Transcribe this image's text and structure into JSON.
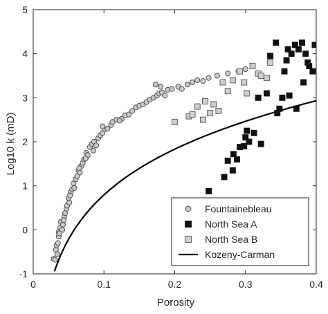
{
  "chart_data": {
    "type": "scatter",
    "xlabel": "Porosity",
    "ylabel": "Log10 k (mD)",
    "xlim": [
      0,
      0.4
    ],
    "ylim": [
      -1,
      5
    ],
    "xticks": [
      0,
      0.1,
      0.2,
      0.3,
      0.4
    ],
    "xtick_labels": [
      "0",
      "0.1",
      "0.2",
      "0.3",
      "0.4"
    ],
    "yticks": [
      -1,
      0,
      1,
      2,
      3,
      4,
      5
    ],
    "ytick_labels": [
      "-1",
      "0",
      "1",
      "2",
      "3",
      "4",
      "5"
    ],
    "grid": false,
    "legend_position": "bottom-right",
    "series": [
      {
        "name": "Fountainebleau",
        "marker": "circle",
        "color": "#c8c8c8",
        "edge": "#444444",
        "points": [
          [
            0.029,
            -0.66
          ],
          [
            0.031,
            -0.68
          ],
          [
            0.032,
            -0.45
          ],
          [
            0.033,
            -0.35
          ],
          [
            0.034,
            -0.55
          ],
          [
            0.035,
            -0.3
          ],
          [
            0.036,
            -0.15
          ],
          [
            0.036,
            -0.05
          ],
          [
            0.038,
            0.05
          ],
          [
            0.039,
            0.18
          ],
          [
            0.041,
            0.0
          ],
          [
            0.042,
            0.12
          ],
          [
            0.044,
            0.3
          ],
          [
            0.045,
            0.38
          ],
          [
            0.047,
            0.48
          ],
          [
            0.048,
            0.55
          ],
          [
            0.05,
            0.72
          ],
          [
            0.051,
            0.62
          ],
          [
            0.053,
            0.85
          ],
          [
            0.055,
            0.92
          ],
          [
            0.057,
            1.05
          ],
          [
            0.058,
            0.95
          ],
          [
            0.06,
            1.15
          ],
          [
            0.062,
            1.22
          ],
          [
            0.064,
            1.35
          ],
          [
            0.066,
            1.3
          ],
          [
            0.068,
            1.45
          ],
          [
            0.07,
            1.52
          ],
          [
            0.072,
            1.6
          ],
          [
            0.075,
            1.75
          ],
          [
            0.077,
            1.7
          ],
          [
            0.08,
            1.88
          ],
          [
            0.083,
            1.95
          ],
          [
            0.086,
            2.0
          ],
          [
            0.089,
            1.92
          ],
          [
            0.092,
            2.08
          ],
          [
            0.095,
            2.15
          ],
          [
            0.098,
            2.2
          ],
          [
            0.101,
            2.28
          ],
          [
            0.105,
            2.3
          ],
          [
            0.11,
            2.38
          ],
          [
            0.112,
            2.45
          ],
          [
            0.118,
            2.5
          ],
          [
            0.125,
            2.52
          ],
          [
            0.13,
            2.6
          ],
          [
            0.135,
            2.62
          ],
          [
            0.14,
            2.7
          ],
          [
            0.145,
            2.78
          ],
          [
            0.15,
            2.82
          ],
          [
            0.155,
            2.85
          ],
          [
            0.16,
            2.9
          ],
          [
            0.165,
            2.96
          ],
          [
            0.17,
            3.0
          ],
          [
            0.175,
            3.05
          ],
          [
            0.178,
            3.1
          ],
          [
            0.182,
            3.12
          ],
          [
            0.186,
            3.05
          ],
          [
            0.19,
            3.18
          ],
          [
            0.196,
            3.2
          ],
          [
            0.205,
            3.25
          ],
          [
            0.21,
            3.2
          ],
          [
            0.218,
            3.3
          ],
          [
            0.225,
            3.35
          ],
          [
            0.232,
            3.4
          ],
          [
            0.24,
            3.38
          ],
          [
            0.248,
            3.45
          ],
          [
            0.26,
            3.5
          ],
          [
            0.275,
            3.55
          ],
          [
            0.29,
            3.6
          ],
          [
            0.3,
            3.65
          ],
          [
            0.173,
            3.3
          ],
          [
            0.18,
            3.25
          ],
          [
            0.122,
            2.48
          ],
          [
            0.098,
            2.35
          ],
          [
            0.085,
            1.8
          ],
          [
            0.074,
            1.62
          ],
          [
            0.065,
            1.4
          ],
          [
            0.052,
            0.78
          ],
          [
            0.043,
            0.22
          ],
          [
            0.037,
            -0.08
          ]
        ]
      },
      {
        "name": "North Sea A",
        "marker": "square",
        "color": "#111111",
        "edge": "#111111",
        "points": [
          [
            0.248,
            0.88
          ],
          [
            0.27,
            1.2
          ],
          [
            0.275,
            1.57
          ],
          [
            0.282,
            1.35
          ],
          [
            0.283,
            1.72
          ],
          [
            0.288,
            1.6
          ],
          [
            0.292,
            1.88
          ],
          [
            0.298,
            1.9
          ],
          [
            0.3,
            2.1
          ],
          [
            0.302,
            2.25
          ],
          [
            0.305,
            2.0
          ],
          [
            0.312,
            2.2
          ],
          [
            0.318,
            3.0
          ],
          [
            0.322,
            1.95
          ],
          [
            0.33,
            3.1
          ],
          [
            0.335,
            3.95
          ],
          [
            0.343,
            4.25
          ],
          [
            0.345,
            2.65
          ],
          [
            0.348,
            2.75
          ],
          [
            0.352,
            3.0
          ],
          [
            0.355,
            3.6
          ],
          [
            0.358,
            3.85
          ],
          [
            0.36,
            4.1
          ],
          [
            0.362,
            3.05
          ],
          [
            0.365,
            4.0
          ],
          [
            0.37,
            4.2
          ],
          [
            0.372,
            2.75
          ],
          [
            0.375,
            4.1
          ],
          [
            0.38,
            4.25
          ],
          [
            0.382,
            3.35
          ],
          [
            0.385,
            4.0
          ],
          [
            0.388,
            3.8
          ],
          [
            0.39,
            3.72
          ],
          [
            0.395,
            3.6
          ],
          [
            0.398,
            4.2
          ]
        ]
      },
      {
        "name": "North Sea B",
        "marker": "square",
        "color": "#cfcfcf",
        "edge": "#555555",
        "points": [
          [
            0.2,
            2.45
          ],
          [
            0.22,
            2.58
          ],
          [
            0.225,
            2.62
          ],
          [
            0.232,
            2.8
          ],
          [
            0.24,
            2.5
          ],
          [
            0.243,
            2.92
          ],
          [
            0.25,
            2.65
          ],
          [
            0.255,
            2.85
          ],
          [
            0.262,
            2.7
          ],
          [
            0.268,
            3.35
          ],
          [
            0.275,
            3.15
          ],
          [
            0.282,
            3.4
          ],
          [
            0.292,
            3.6
          ],
          [
            0.298,
            3.35
          ],
          [
            0.302,
            3.1
          ],
          [
            0.31,
            3.72
          ],
          [
            0.318,
            3.55
          ],
          [
            0.322,
            3.5
          ],
          [
            0.33,
            3.45
          ],
          [
            0.335,
            3.8
          ]
        ]
      },
      {
        "name": "Kozeny-Carman",
        "marker": "line",
        "color": "#000000"
      }
    ]
  }
}
